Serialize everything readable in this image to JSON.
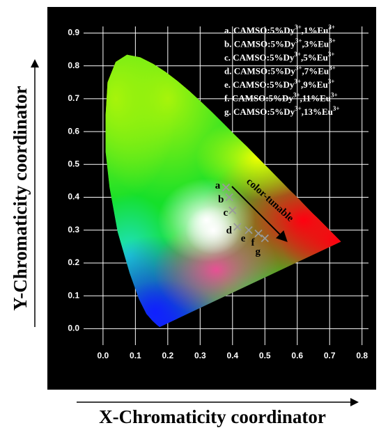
{
  "chart_data": {
    "type": "scatter",
    "x_label": "X-Chromaticity coordinator",
    "y_label": "Y-Chromaticity coordinator",
    "xlim": [
      -0.06,
      0.82
    ],
    "ylim": [
      -0.05,
      0.92
    ],
    "xticks": [
      {
        "value": 0,
        "label": "0.0"
      },
      0.1,
      0.2,
      0.3,
      0.4,
      0.5,
      0.6,
      0.7,
      0.8
    ],
    "yticks": [
      {
        "value": 0,
        "label": "0.0"
      },
      0.1,
      0.2,
      0.3,
      0.4,
      0.5,
      0.6,
      0.7,
      0.8,
      0.9
    ],
    "grid": true,
    "annotation": "color-tunable",
    "series": [
      {
        "color": "#9a9a9a",
        "labels": [
          "a",
          "b",
          "c",
          "d",
          "e",
          "f",
          "g"
        ],
        "x": [
          0.38,
          0.39,
          0.4,
          0.415,
          0.45,
          0.48,
          0.5
        ],
        "values": [
          0.43,
          0.4,
          0.36,
          0.31,
          0.3,
          0.29,
          0.275
        ]
      }
    ],
    "legend": [
      {
        "prefix": "a. CAMSO:5%Dy",
        "sup1": "3+",
        "mid": ",1%Eu",
        "sup2": "3+"
      },
      {
        "prefix": "b. CAMSO:5%Dy",
        "sup1": "3+",
        "mid": ",3%Eu",
        "sup2": "3+"
      },
      {
        "prefix": "c. CAMSO:5%Dy",
        "sup1": "3+",
        "mid": ",5%Eu",
        "sup2": "3+"
      },
      {
        "prefix": "d. CAMSO:5%Dy",
        "sup1": "3+",
        "mid": ",7%Eu",
        "sup2": "3+"
      },
      {
        "prefix": "e. CAMSO:5%Dy",
        "sup1": "3+",
        "mid": ",9%Eu",
        "sup2": "3+"
      },
      {
        "prefix": "f. CAMSO:5%Dy",
        "sup1": "3+",
        "mid": ",11%Eu",
        "sup2": "3+"
      },
      {
        "prefix": "g. CAMSO:5%Dy",
        "sup1": "3+",
        "mid": ",13%Eu",
        "sup2": "3+"
      }
    ]
  }
}
